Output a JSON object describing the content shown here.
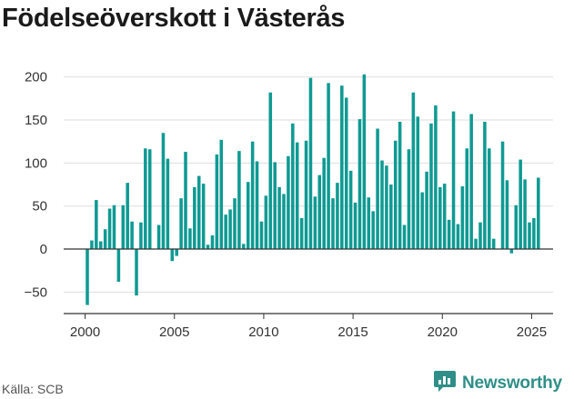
{
  "title": "Födelseöverskott i Västerås",
  "source": "Källa: SCB",
  "brand": {
    "name": "Newsworthy",
    "icon": "newsworthy-chart-icon"
  },
  "colors": {
    "bar": "#0f9a93",
    "grid": "#dddddd",
    "zero_line": "#333333",
    "brand": "#2f8f88"
  },
  "chart_data": {
    "type": "bar",
    "title": "Födelseöverskott i Västerås",
    "xlabel": "",
    "ylabel": "",
    "ylim": [
      -75,
      205
    ],
    "xlim": [
      1998.8,
      2026.2
    ],
    "grid": true,
    "y_ticks": [
      200,
      150,
      100,
      50,
      0,
      -50
    ],
    "y_tick_labels": [
      "200",
      "150",
      "100",
      "50",
      "0",
      "−50"
    ],
    "x_ticks": [
      2000,
      2005,
      2010,
      2015,
      2020,
      2025
    ],
    "x_tick_labels": [
      "2000",
      "2005",
      "2010",
      "2015",
      "2020",
      "2025"
    ],
    "frequency": "quarterly",
    "x": [
      "2000 Q1",
      "2000 Q2",
      "2000 Q3",
      "2000 Q4",
      "2001 Q1",
      "2001 Q2",
      "2001 Q3",
      "2001 Q4",
      "2002 Q1",
      "2002 Q2",
      "2002 Q3",
      "2002 Q4",
      "2003 Q1",
      "2003 Q2",
      "2003 Q3",
      "2003 Q4",
      "2004 Q1",
      "2004 Q2",
      "2004 Q3",
      "2004 Q4",
      "2005 Q1",
      "2005 Q2",
      "2005 Q3",
      "2005 Q4",
      "2006 Q1",
      "2006 Q2",
      "2006 Q3",
      "2006 Q4",
      "2007 Q1",
      "2007 Q2",
      "2007 Q3",
      "2007 Q4",
      "2008 Q1",
      "2008 Q2",
      "2008 Q3",
      "2008 Q4",
      "2009 Q1",
      "2009 Q2",
      "2009 Q3",
      "2009 Q4",
      "2010 Q1",
      "2010 Q2",
      "2010 Q3",
      "2010 Q4",
      "2011 Q1",
      "2011 Q2",
      "2011 Q3",
      "2011 Q4",
      "2012 Q1",
      "2012 Q2",
      "2012 Q3",
      "2012 Q4",
      "2013 Q1",
      "2013 Q2",
      "2013 Q3",
      "2013 Q4",
      "2014 Q1",
      "2014 Q2",
      "2014 Q3",
      "2014 Q4",
      "2015 Q1",
      "2015 Q2",
      "2015 Q3",
      "2015 Q4",
      "2016 Q1",
      "2016 Q2",
      "2016 Q3",
      "2016 Q4",
      "2017 Q1",
      "2017 Q2",
      "2017 Q3",
      "2017 Q4",
      "2018 Q1",
      "2018 Q2",
      "2018 Q3",
      "2018 Q4",
      "2019 Q1",
      "2019 Q2",
      "2019 Q3",
      "2019 Q4",
      "2020 Q1",
      "2020 Q2",
      "2020 Q3",
      "2020 Q4",
      "2021 Q1",
      "2021 Q2",
      "2021 Q3",
      "2021 Q4",
      "2022 Q1",
      "2022 Q2",
      "2022 Q3",
      "2022 Q4",
      "2023 Q1",
      "2023 Q2",
      "2023 Q3",
      "2023 Q4",
      "2024 Q1",
      "2024 Q2",
      "2024 Q3",
      "2024 Q4",
      "2025 Q1",
      "2025 Q2"
    ],
    "values": [
      -65,
      10,
      57,
      9,
      23,
      47,
      51,
      -38,
      51,
      77,
      32,
      -54,
      31,
      117,
      116,
      0,
      28,
      135,
      105,
      -14,
      -8,
      59,
      113,
      24,
      72,
      85,
      76,
      5,
      16,
      110,
      127,
      40,
      46,
      59,
      114,
      6,
      78,
      125,
      102,
      32,
      62,
      182,
      101,
      72,
      64,
      108,
      146,
      124,
      36,
      126,
      199,
      61,
      86,
      106,
      193,
      59,
      77,
      190,
      176,
      91,
      54,
      151,
      203,
      60,
      44,
      140,
      103,
      97,
      75,
      126,
      148,
      28,
      116,
      182,
      154,
      66,
      90,
      146,
      167,
      72,
      76,
      34,
      160,
      29,
      73,
      117,
      157,
      12,
      31,
      148,
      117,
      12,
      0,
      125,
      80,
      -5,
      51,
      104,
      81,
      31,
      36,
      83
    ]
  }
}
